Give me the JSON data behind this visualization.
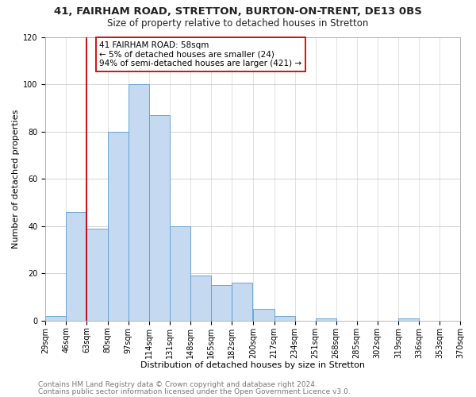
{
  "title": "41, FAIRHAM ROAD, STRETTON, BURTON-ON-TRENT, DE13 0BS",
  "subtitle": "Size of property relative to detached houses in Stretton",
  "xlabel": "Distribution of detached houses by size in Stretton",
  "ylabel": "Number of detached properties",
  "bar_edges": [
    29,
    46,
    63,
    80,
    97,
    114,
    131,
    148,
    165,
    182,
    200,
    217,
    234,
    251,
    268,
    285,
    302,
    319,
    336,
    353,
    370
  ],
  "bar_heights": [
    2,
    46,
    39,
    80,
    100,
    87,
    40,
    19,
    15,
    16,
    5,
    2,
    0,
    1,
    0,
    0,
    0,
    1,
    0,
    0
  ],
  "bar_color": "#c5d9f1",
  "bar_edgecolor": "#5b9bd5",
  "reference_line_x": 63,
  "reference_line_color": "#cc0000",
  "ylim": [
    0,
    120
  ],
  "yticks": [
    0,
    20,
    40,
    60,
    80,
    100,
    120
  ],
  "annotation_title": "41 FAIRHAM ROAD: 58sqm",
  "annotation_line1": "← 5% of detached houses are smaller (24)",
  "annotation_line2": "94% of semi-detached houses are larger (421) →",
  "annotation_box_color": "#ffffff",
  "annotation_box_edgecolor": "#cc0000",
  "footer_line1": "Contains HM Land Registry data © Crown copyright and database right 2024.",
  "footer_line2": "Contains public sector information licensed under the Open Government Licence v3.0.",
  "title_fontsize": 9.5,
  "subtitle_fontsize": 8.5,
  "xlabel_fontsize": 8,
  "ylabel_fontsize": 8,
  "tick_fontsize": 7,
  "footer_fontsize": 6.5,
  "annotation_fontsize": 7.5,
  "background_color": "#ffffff"
}
